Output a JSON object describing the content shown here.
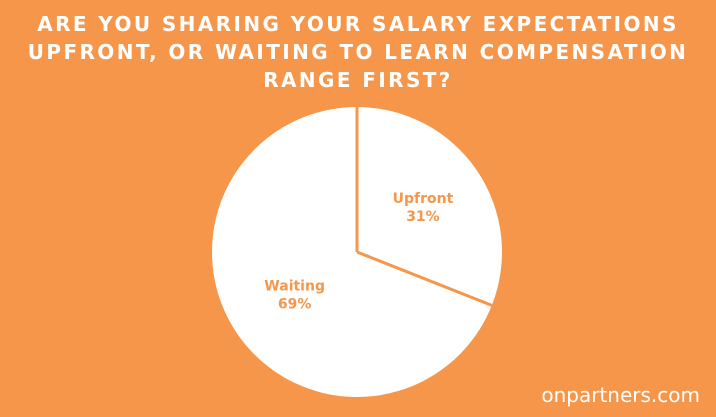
{
  "title_lines": [
    "ARE YOU SHARING YOUR SALARY EXPECTATIONS",
    "UPFRONT, OR WAITING TO LEARN COMPENSATION",
    "RANGE FIRST?"
  ],
  "watermark": "onpartners.com",
  "colors": {
    "background": "#F5964A",
    "pie_fill": "#FFFFFF",
    "divider": "#F5964A",
    "label": "#F5964A"
  },
  "chart_data": {
    "type": "pie",
    "title": "ARE YOU SHARING YOUR SALARY EXPECTATIONS UPFRONT, OR WAITING TO LEARN COMPENSATION RANGE FIRST?",
    "start_angle_deg": 0,
    "direction": "clockwise",
    "slices": [
      {
        "label": "Upfront",
        "value": 31,
        "value_label": "31%"
      },
      {
        "label": "Waiting",
        "value": 69,
        "value_label": "69%"
      }
    ]
  }
}
